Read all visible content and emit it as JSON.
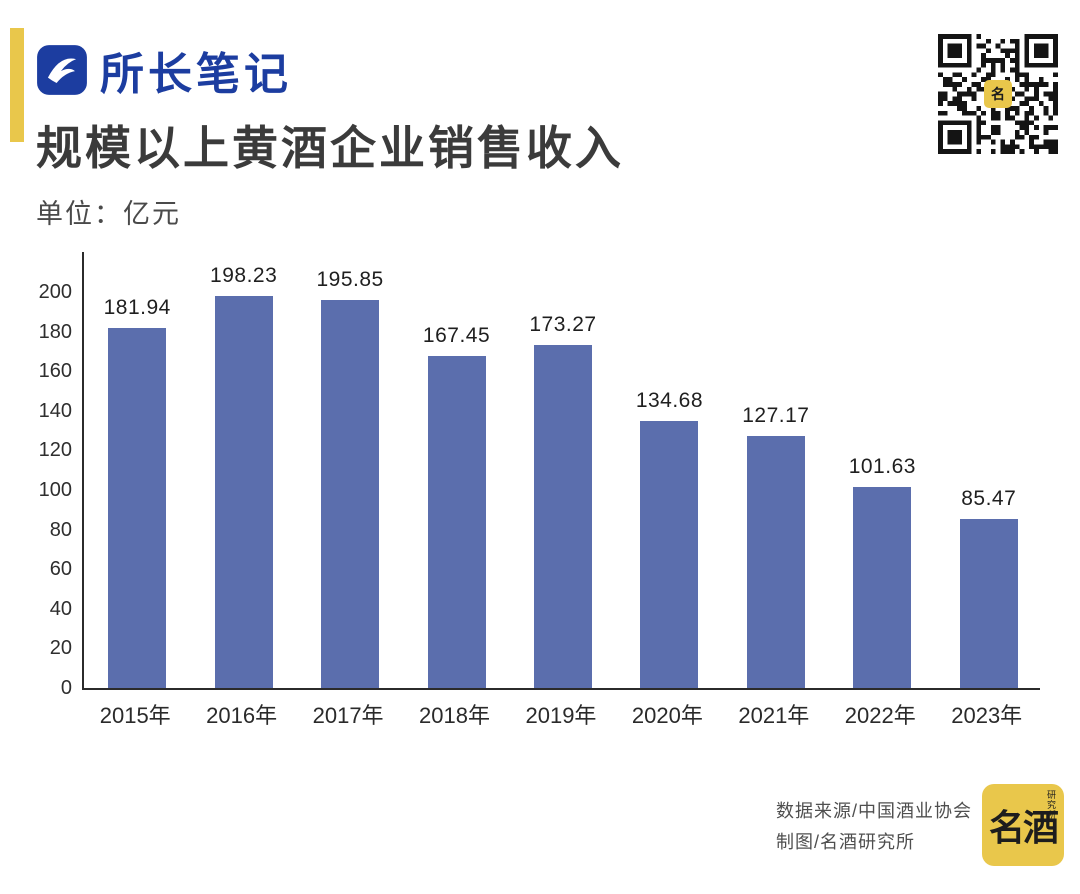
{
  "brand": {
    "name": "所长笔记"
  },
  "title": "规模以上黄酒企业销售收入",
  "unit_label": "单位：亿元",
  "chart_data": {
    "type": "bar",
    "title": "规模以上黄酒企业销售收入",
    "ylabel": "亿元",
    "categories": [
      "2015年",
      "2016年",
      "2017年",
      "2018年",
      "2019年",
      "2020年",
      "2021年",
      "2022年",
      "2023年"
    ],
    "values": [
      181.94,
      198.23,
      195.85,
      167.45,
      173.27,
      134.68,
      127.17,
      101.63,
      85.47
    ],
    "value_labels": [
      "181.94",
      "198.23",
      "195.85",
      "167.45",
      "173.27",
      "134.68",
      "127.17",
      "101.63",
      "85.47"
    ],
    "ylim": [
      0,
      200
    ],
    "yticks": [
      0,
      20,
      40,
      60,
      80,
      100,
      120,
      140,
      160,
      180,
      200
    ],
    "grid": false,
    "legend": false
  },
  "footer": {
    "source": "数据来源/中国酒业协会",
    "credit": "制图/名酒研究所"
  },
  "seal": {
    "main": "名酒",
    "sub": "研究所",
    "qr_center": "名"
  },
  "colors": {
    "bar": "#5b6ead",
    "brand_blue": "#1c3da0",
    "accent_yellow": "#e9c74b",
    "axis": "#2b2b2b"
  }
}
